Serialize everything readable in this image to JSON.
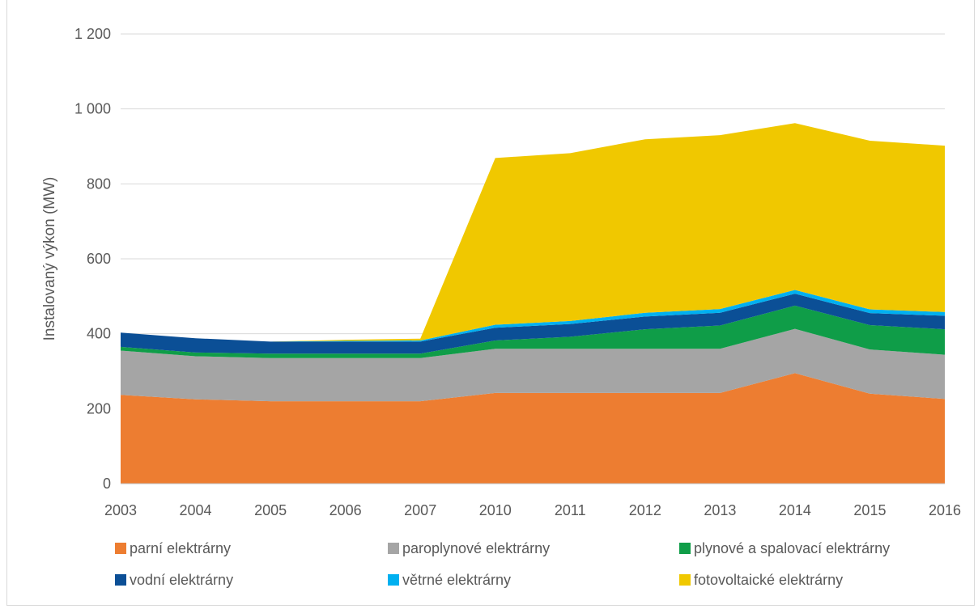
{
  "chart_data": {
    "type": "area",
    "stacked": true,
    "title": "",
    "xlabel": "",
    "ylabel": "Instalovaný výkon (MW)",
    "ylim": [
      0,
      1200
    ],
    "yticks": [
      0,
      200,
      400,
      600,
      800,
      1000,
      1200
    ],
    "ytick_labels": [
      "0",
      "200",
      "400",
      "600",
      "800",
      "1 000",
      "1 200"
    ],
    "categories": [
      "2003",
      "2004",
      "2005",
      "2006",
      "2007",
      "2010",
      "2011",
      "2012",
      "2013",
      "2014",
      "2015",
      "2016"
    ],
    "grid": true,
    "legend_position": "bottom",
    "series": [
      {
        "name": "parní elektrárny",
        "color": "#ED7D31",
        "values": [
          237,
          225,
          220,
          220,
          220,
          242,
          242,
          242,
          242,
          295,
          240,
          226
        ]
      },
      {
        "name": "paroplynové elektrárny",
        "color": "#A5A5A5",
        "values": [
          118,
          115,
          115,
          115,
          115,
          118,
          118,
          118,
          118,
          118,
          118,
          118
        ]
      },
      {
        "name": "plynové a spalovací elektrárny",
        "color": "#0F9D48",
        "values": [
          10,
          10,
          12,
          12,
          12,
          22,
          32,
          52,
          62,
          62,
          65,
          68
        ]
      },
      {
        "name": "vodní elektrárny",
        "color": "#0B4F96",
        "values": [
          38,
          38,
          32,
          32,
          32,
          34,
          34,
          34,
          34,
          32,
          32,
          36
        ]
      },
      {
        "name": "větrné elektrárny",
        "color": "#00B0F0",
        "values": [
          0,
          0,
          0,
          2,
          3,
          8,
          8,
          10,
          10,
          10,
          10,
          10
        ]
      },
      {
        "name": "fotovoltaické elektrárny",
        "color": "#F0C800",
        "values": [
          0,
          0,
          0,
          3,
          5,
          445,
          448,
          463,
          464,
          445,
          450,
          444
        ]
      }
    ]
  }
}
